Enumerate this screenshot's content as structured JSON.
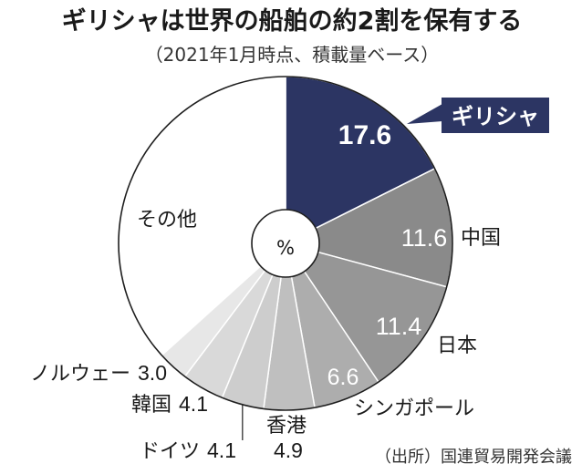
{
  "chart_data": {
    "type": "pie",
    "title": "ギリシャは世界の船舶の約2割を保有する",
    "subtitle": "（2021年1月時点、積載量ベース）",
    "unit": "%",
    "categories": [
      "ギリシャ",
      "中国",
      "日本",
      "シンガポール",
      "香港",
      "ドイツ",
      "韓国",
      "ノルウェー",
      "その他"
    ],
    "values": [
      17.6,
      11.6,
      11.4,
      6.6,
      4.9,
      4.1,
      4.1,
      3.0,
      36.7
    ],
    "colors": [
      "#2c3563",
      "#8a8a8a",
      "#969696",
      "#adadad",
      "#bfbfbf",
      "#cdcdcd",
      "#d9d9d9",
      "#e7e7e7",
      "#ffffff"
    ],
    "source": "（出所）国連貿易開発会議"
  }
}
